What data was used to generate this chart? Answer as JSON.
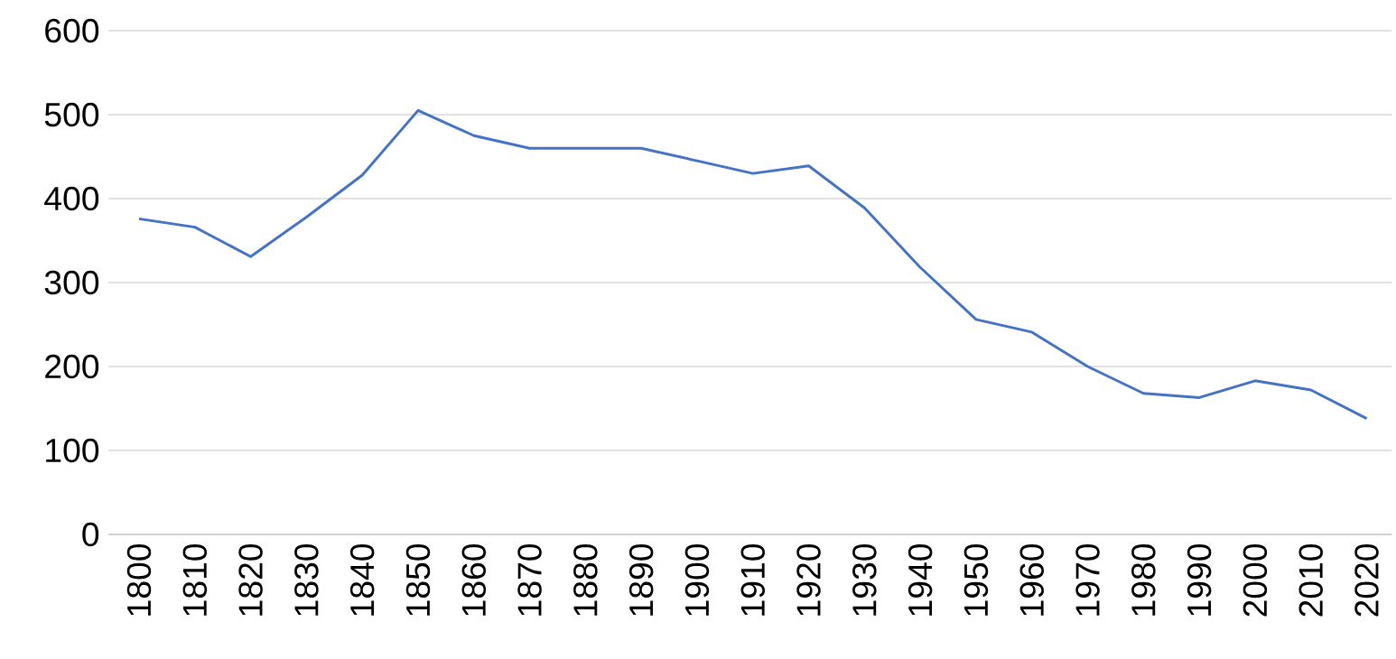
{
  "chart_data": {
    "type": "line",
    "categories": [
      "1800",
      "1810",
      "1820",
      "1830",
      "1840",
      "1850",
      "1860",
      "1870",
      "1880",
      "1890",
      "1900",
      "1910",
      "1920",
      "1930",
      "1940",
      "1950",
      "1960",
      "1970",
      "1980",
      "1990",
      "2000",
      "2010",
      "2020"
    ],
    "series": [
      {
        "color": "#4472c4",
        "values": [
          376,
          366,
          331,
          378,
          428,
          505,
          475,
          460,
          460,
          460,
          445,
          430,
          439,
          389,
          318,
          256,
          241,
          200,
          168,
          163,
          183,
          172,
          138
        ]
      }
    ],
    "ylim": [
      0,
      600
    ],
    "yticks": [
      0,
      100,
      200,
      300,
      400,
      500,
      600
    ],
    "grid": "y"
  }
}
